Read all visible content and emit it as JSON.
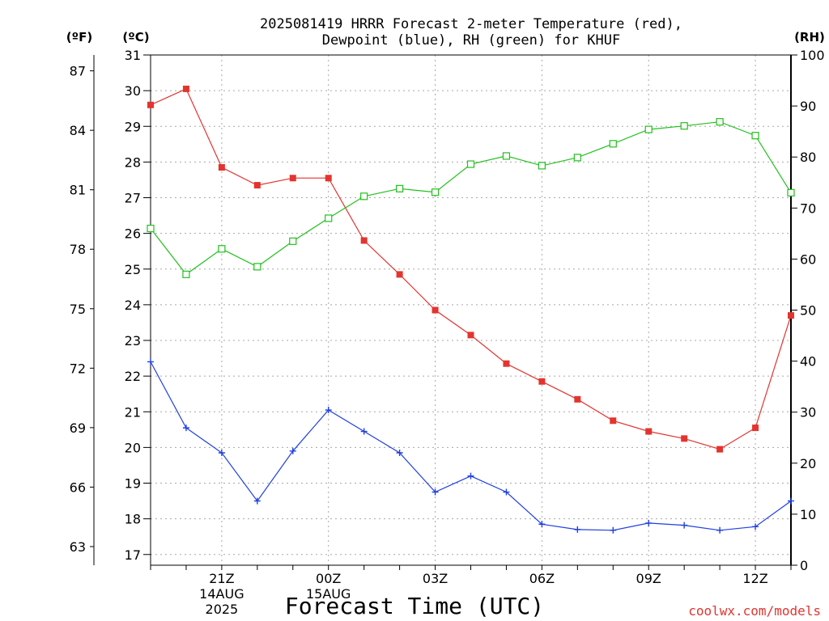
{
  "chart_data": {
    "type": "line",
    "title": [
      "2025081419 HRRR Forecast 2-meter Temperature (red),",
      "Dewpoint (blue), RH (green) for KHUF"
    ],
    "xlabel": "Forecast Time (UTC)",
    "credit": "coolwx.com/models",
    "left_outer_unit": "(ºF)",
    "left_inner_unit": "(ºC)",
    "right_unit": "(RH)",
    "x": [
      "19Z",
      "20Z",
      "21Z",
      "22Z",
      "23Z",
      "00Z",
      "01Z",
      "02Z",
      "03Z",
      "04Z",
      "05Z",
      "06Z",
      "07Z",
      "08Z",
      "09Z",
      "10Z",
      "11Z",
      "12Z",
      "13Z"
    ],
    "x_tick_labels": [
      {
        "at": "21Z",
        "lines": [
          "21Z",
          "14AUG",
          "2025"
        ]
      },
      {
        "at": "00Z",
        "lines": [
          "00Z",
          "15AUG"
        ]
      },
      {
        "at": "03Z",
        "lines": [
          "03Z"
        ]
      },
      {
        "at": "06Z",
        "lines": [
          "06Z"
        ]
      },
      {
        "at": "09Z",
        "lines": [
          "09Z"
        ]
      },
      {
        "at": "12Z",
        "lines": [
          "12Z"
        ]
      }
    ],
    "celsius_axis": {
      "ylim": [
        16.7,
        31
      ],
      "ticks": [
        17,
        18,
        19,
        20,
        21,
        22,
        23,
        24,
        25,
        26,
        27,
        28,
        29,
        30,
        31
      ]
    },
    "fahrenheit_axis": {
      "ticks": [
        63,
        66,
        69,
        72,
        75,
        78,
        81,
        84,
        87
      ]
    },
    "rh_axis": {
      "ylim": [
        0,
        100
      ],
      "ticks": [
        0,
        10,
        20,
        30,
        40,
        50,
        60,
        70,
        80,
        90,
        100
      ]
    },
    "grid": true,
    "series": [
      {
        "name": "Temperature",
        "axis": "C",
        "color": "#e3342f",
        "marker": "filled-square",
        "values": [
          29.6,
          30.05,
          27.85,
          27.35,
          27.55,
          27.55,
          25.8,
          24.85,
          23.85,
          23.15,
          22.35,
          21.85,
          21.35,
          20.75,
          20.45,
          20.25,
          19.95,
          20.55,
          23.7
        ]
      },
      {
        "name": "Dewpoint",
        "axis": "C",
        "color": "#1f3fe0",
        "marker": "plus",
        "values": [
          22.4,
          20.55,
          19.85,
          18.5,
          19.9,
          21.05,
          20.45,
          19.85,
          18.75,
          19.2,
          18.75,
          17.85,
          17.7,
          17.68,
          17.88,
          17.82,
          17.68,
          17.78,
          18.5
        ]
      },
      {
        "name": "RH",
        "axis": "RH",
        "color": "#22c01c",
        "marker": "open-square",
        "values": [
          66,
          57,
          62,
          58.5,
          63.5,
          68,
          72.3,
          73.8,
          73.1,
          78.6,
          80.2,
          78.3,
          79.9,
          82.6,
          85.4,
          86.1,
          86.9,
          84.2,
          73
        ]
      }
    ]
  }
}
